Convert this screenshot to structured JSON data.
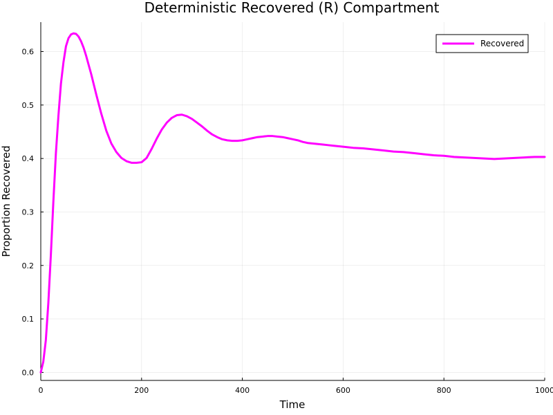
{
  "chart_data": {
    "type": "line",
    "title": "Deterministic Recovered (R) Compartment",
    "xlabel": "Time",
    "ylabel": "Proportion Recovered",
    "xlim": [
      0,
      1000
    ],
    "ylim": [
      -0.015,
      0.655
    ],
    "xticks": [
      0,
      200,
      400,
      600,
      800,
      1000
    ],
    "xtick_labels": [
      "0",
      "200",
      "400",
      "600",
      "800",
      "1000"
    ],
    "yticks": [
      0.0,
      0.1,
      0.2,
      0.3,
      0.4,
      0.5,
      0.6
    ],
    "ytick_labels": [
      "0.0",
      "0.1",
      "0.2",
      "0.3",
      "0.4",
      "0.5",
      "0.6"
    ],
    "grid": true,
    "legend_position": "top-right",
    "series": [
      {
        "name": "Recovered",
        "color": "#ff00ff",
        "x": [
          0,
          5,
          10,
          15,
          20,
          25,
          30,
          35,
          40,
          45,
          50,
          55,
          60,
          65,
          70,
          75,
          80,
          85,
          90,
          95,
          100,
          110,
          120,
          130,
          140,
          150,
          160,
          170,
          180,
          190,
          200,
          210,
          220,
          230,
          240,
          250,
          260,
          270,
          280,
          290,
          300,
          310,
          320,
          330,
          340,
          350,
          360,
          370,
          380,
          390,
          400,
          410,
          420,
          430,
          440,
          450,
          460,
          470,
          480,
          490,
          500,
          510,
          520,
          530,
          540,
          550,
          560,
          570,
          580,
          590,
          600,
          620,
          640,
          660,
          680,
          700,
          720,
          740,
          760,
          780,
          800,
          820,
          840,
          860,
          880,
          900,
          920,
          940,
          960,
          980,
          1000
        ],
        "y": [
          0.0,
          0.02,
          0.06,
          0.13,
          0.22,
          0.32,
          0.41,
          0.48,
          0.54,
          0.58,
          0.61,
          0.625,
          0.632,
          0.634,
          0.633,
          0.628,
          0.619,
          0.607,
          0.592,
          0.575,
          0.558,
          0.52,
          0.484,
          0.452,
          0.428,
          0.412,
          0.401,
          0.395,
          0.392,
          0.392,
          0.393,
          0.401,
          0.418,
          0.437,
          0.454,
          0.467,
          0.476,
          0.481,
          0.482,
          0.479,
          0.474,
          0.467,
          0.46,
          0.452,
          0.445,
          0.44,
          0.436,
          0.434,
          0.433,
          0.433,
          0.434,
          0.436,
          0.438,
          0.44,
          0.441,
          0.442,
          0.442,
          0.441,
          0.44,
          0.438,
          0.436,
          0.434,
          0.431,
          0.429,
          0.428,
          0.427,
          0.426,
          0.425,
          0.424,
          0.423,
          0.422,
          0.42,
          0.419,
          0.417,
          0.415,
          0.413,
          0.412,
          0.41,
          0.408,
          0.406,
          0.405,
          0.403,
          0.402,
          0.401,
          0.4,
          0.399,
          0.4,
          0.401,
          0.402,
          0.403,
          0.403
        ]
      }
    ]
  }
}
